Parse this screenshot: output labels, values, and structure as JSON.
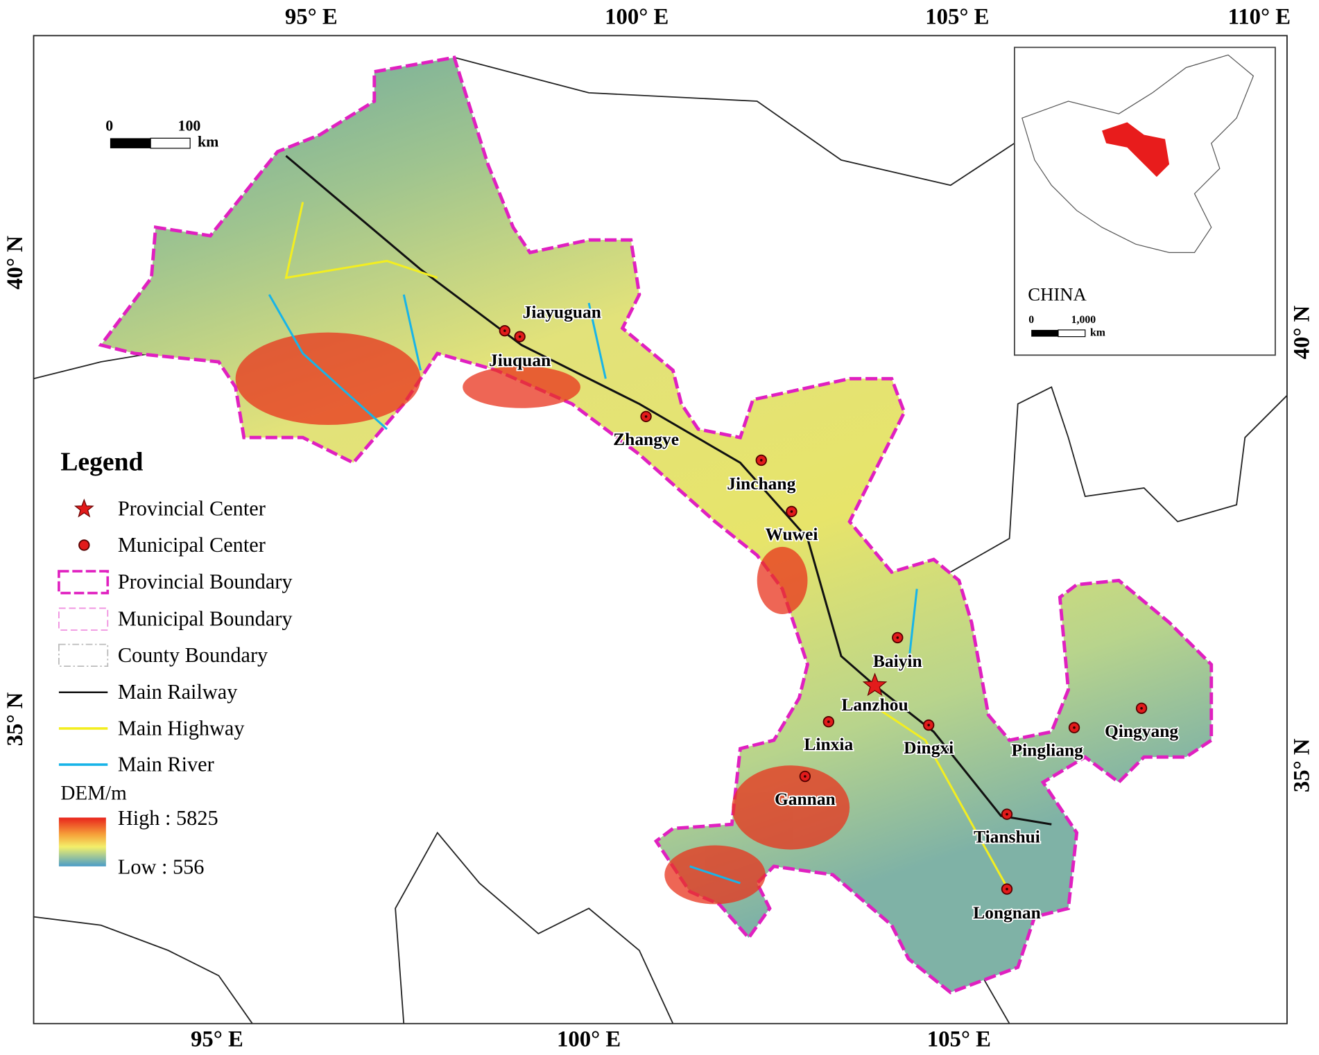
{
  "map": {
    "graticule": {
      "top": [
        "95° E",
        "100° E",
        "105° E",
        "110° E"
      ],
      "bottom": [
        "95° E",
        "100° E",
        "105° E"
      ],
      "left": [
        "40° N",
        "35° N"
      ],
      "right": [
        "40° N",
        "35° N"
      ]
    },
    "scale_bar": {
      "labels": [
        "0",
        "100"
      ],
      "unit": "km"
    },
    "cities": [
      "Jiayuguan",
      "Jiuquan",
      "Zhangye",
      "Jinchang",
      "Wuwei",
      "Baiyin",
      "Lanzhou",
      "Linxia",
      "Dingxi",
      "Gannan",
      "Pingliang",
      "Qingyang",
      "Tianshui",
      "Longnan"
    ],
    "legend": {
      "title": "Legend",
      "items": [
        "Provincial Center",
        "Municipal Center",
        "Provincial Boundary",
        "Municipal Boundary",
        "County Boundary",
        "Main Railway",
        "Main Highway",
        "Main River"
      ],
      "dem": {
        "title": "DEM/m",
        "high": "High : 5825",
        "low": "Low : 556"
      }
    },
    "inset": {
      "title": "CHINA",
      "scale_labels": [
        "0",
        "1,000"
      ],
      "unit": "km"
    }
  }
}
